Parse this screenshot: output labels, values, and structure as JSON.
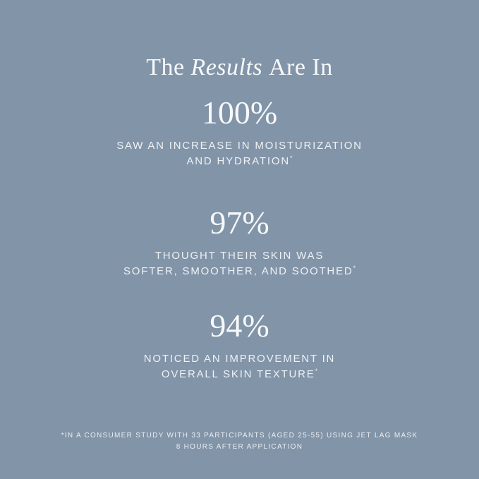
{
  "page": {
    "background_color": "#8294a8",
    "text_color": "#f3f6f8"
  },
  "title": {
    "prefix": "The",
    "emphasis": "Results",
    "suffix": "Are In"
  },
  "stats": [
    {
      "value": "100%",
      "caption_line1": "SAW AN INCREASE IN MOISTURIZATION",
      "caption_line2": "AND HYDRATION",
      "marker": "*"
    },
    {
      "value": "97%",
      "caption_line1": "THOUGHT THEIR SKIN WAS",
      "caption_line2": "SOFTER, SMOOTHER, AND SOOTHED",
      "marker": "*"
    },
    {
      "value": "94%",
      "caption_line1": "NOTICED AN IMPROVEMENT IN",
      "caption_line2": "OVERALL SKIN TEXTURE",
      "marker": "*"
    }
  ],
  "footnote": {
    "line1": "*IN A CONSUMER STUDY WITH 33 PARTICIPANTS (AGED 25-55) USING JET LAG MASK",
    "line2": "8 HOURS AFTER APPLICATION"
  }
}
